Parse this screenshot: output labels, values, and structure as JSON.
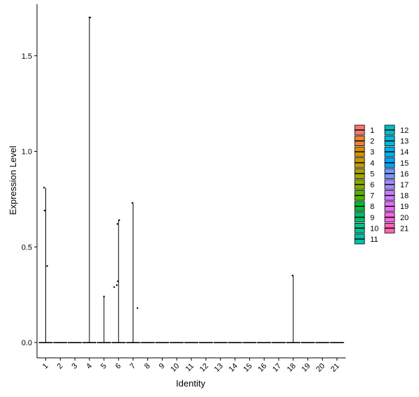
{
  "chart_data": {
    "type": "violin",
    "xlabel": "Identity",
    "ylabel": "Expression Level",
    "categories": [
      "1",
      "2",
      "3",
      "4",
      "5",
      "6",
      "7",
      "8",
      "9",
      "10",
      "11",
      "12",
      "13",
      "14",
      "15",
      "16",
      "17",
      "18",
      "19",
      "20",
      "21"
    ],
    "ylim": [
      0,
      1.75
    ],
    "yticks": [
      0.0,
      0.5,
      1.0,
      1.5
    ],
    "ytick_labels": [
      "0.0",
      "0.5",
      "1.0",
      "1.5"
    ],
    "grid": false,
    "legend_placement": "right",
    "legend_columns": 2,
    "colors": [
      "#F8766D",
      "#EB8335",
      "#DA8E00",
      "#C49A00",
      "#A9A400",
      "#86AC00",
      "#53B400",
      "#00BA38",
      "#00BE6C",
      "#00C08D",
      "#00C0AA",
      "#00BDC4",
      "#00B8DB",
      "#00B0EE",
      "#00A5FC",
      "#7997FF",
      "#A58AFF",
      "#C77CFF",
      "#E36EF6",
      "#F564E3",
      "#FF64B0"
    ],
    "series_max": [
      0.81,
      0,
      0,
      1.7,
      0.24,
      0.64,
      0.73,
      0,
      0,
      0,
      0,
      0,
      0,
      0,
      0,
      0,
      0,
      0.35,
      0,
      0,
      0
    ],
    "points": [
      {
        "cat": 1,
        "dx": -0.12,
        "y": 0.81
      },
      {
        "cat": 1,
        "dx": -0.08,
        "y": 0.69
      },
      {
        "cat": 1,
        "dx": 0.1,
        "y": 0.4
      },
      {
        "cat": 4,
        "dx": 0.0,
        "y": 1.7
      },
      {
        "cat": 4,
        "dx": 0.05,
        "y": 1.7
      },
      {
        "cat": 5,
        "dx": 0.0,
        "y": 0.24
      },
      {
        "cat": 6,
        "dx": -0.3,
        "y": 0.29
      },
      {
        "cat": 6,
        "dx": -0.12,
        "y": 0.3
      },
      {
        "cat": 6,
        "dx": -0.08,
        "y": 0.62
      },
      {
        "cat": 6,
        "dx": -0.05,
        "y": 0.32
      },
      {
        "cat": 6,
        "dx": 0.05,
        "y": 0.64
      },
      {
        "cat": 7,
        "dx": -0.05,
        "y": 0.73
      },
      {
        "cat": 7,
        "dx": 0.3,
        "y": 0.18
      },
      {
        "cat": 18,
        "dx": -0.05,
        "y": 0.35
      }
    ]
  }
}
